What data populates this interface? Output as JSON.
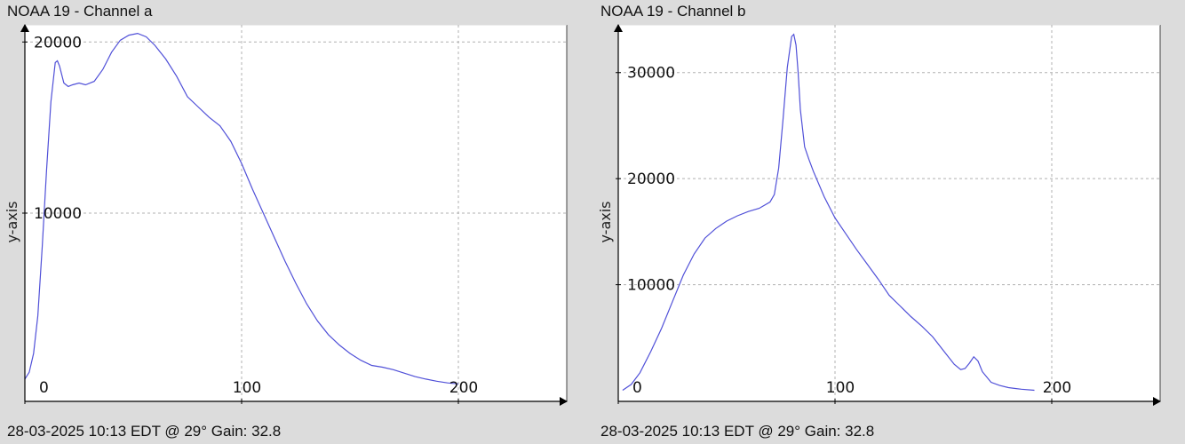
{
  "charts": [
    {
      "title": "NOAA 19 - Channel a",
      "footer": "28-03-2025 10:13 EDT @ 29° Gain: 32.8"
    },
    {
      "title": "NOAA 19 - Channel b",
      "footer": "28-03-2025 10:13 EDT @ 29° Gain: 32.8"
    }
  ],
  "chart_data": [
    {
      "type": "line",
      "title": "NOAA 19 - Channel a",
      "xlabel": "",
      "ylabel": "y-axis",
      "xlim": [
        0,
        250
      ],
      "ylim": [
        -1000,
        21000
      ],
      "x_ticks": [
        0,
        100,
        200
      ],
      "y_ticks": [
        10000,
        20000
      ],
      "grid": true,
      "color": "#5050d8",
      "series": [
        {
          "x": [
            0,
            2,
            4,
            6,
            8,
            10,
            12,
            14,
            15,
            16,
            18,
            20,
            22,
            25,
            28,
            32,
            36,
            40,
            44,
            48,
            52,
            56,
            60,
            65,
            70,
            75,
            80,
            85,
            90,
            95,
            100,
            105,
            110,
            115,
            120,
            125,
            130,
            135,
            140,
            145,
            150,
            155,
            160,
            165,
            170,
            175,
            180,
            185,
            190,
            195,
            200
          ],
          "y": [
            300,
            700,
            1800,
            4000,
            8000,
            12500,
            16500,
            18800,
            18900,
            18600,
            17600,
            17400,
            17500,
            17600,
            17500,
            17700,
            18400,
            19400,
            20100,
            20400,
            20500,
            20300,
            19800,
            19000,
            18000,
            16800,
            16200,
            15600,
            15100,
            14200,
            12900,
            11400,
            10000,
            8600,
            7200,
            5900,
            4700,
            3700,
            2900,
            2300,
            1800,
            1400,
            1100,
            1000,
            850,
            650,
            450,
            300,
            180,
            80,
            20
          ]
        }
      ]
    },
    {
      "type": "line",
      "title": "NOAA 19 - Channel b",
      "xlabel": "",
      "ylabel": "y-axis",
      "xlim": [
        0,
        250
      ],
      "ylim": [
        -1000,
        34500
      ],
      "x_ticks": [
        0,
        100,
        200
      ],
      "y_ticks": [
        10000,
        20000,
        30000
      ],
      "grid": true,
      "color": "#5050d8",
      "series": [
        {
          "x": [
            2,
            6,
            10,
            15,
            20,
            25,
            30,
            35,
            40,
            45,
            50,
            55,
            60,
            65,
            70,
            72,
            74,
            76,
            78,
            80,
            81,
            82,
            83,
            84,
            86,
            88,
            90,
            95,
            100,
            105,
            110,
            115,
            120,
            125,
            130,
            135,
            140,
            145,
            150,
            155,
            158,
            160,
            162,
            164,
            166,
            168,
            172,
            176,
            180,
            186,
            192
          ],
          "y": [
            50,
            600,
            1700,
            3700,
            5900,
            8400,
            10900,
            12900,
            14400,
            15300,
            16000,
            16500,
            16900,
            17200,
            17800,
            18500,
            21000,
            25500,
            30500,
            33400,
            33600,
            32600,
            30000,
            26500,
            23000,
            21800,
            20700,
            18300,
            16300,
            14800,
            13300,
            11900,
            10500,
            9000,
            8000,
            7000,
            6100,
            5100,
            3800,
            2500,
            2000,
            2100,
            2600,
            3200,
            2800,
            1800,
            800,
            500,
            300,
            150,
            50
          ]
        }
      ]
    }
  ]
}
